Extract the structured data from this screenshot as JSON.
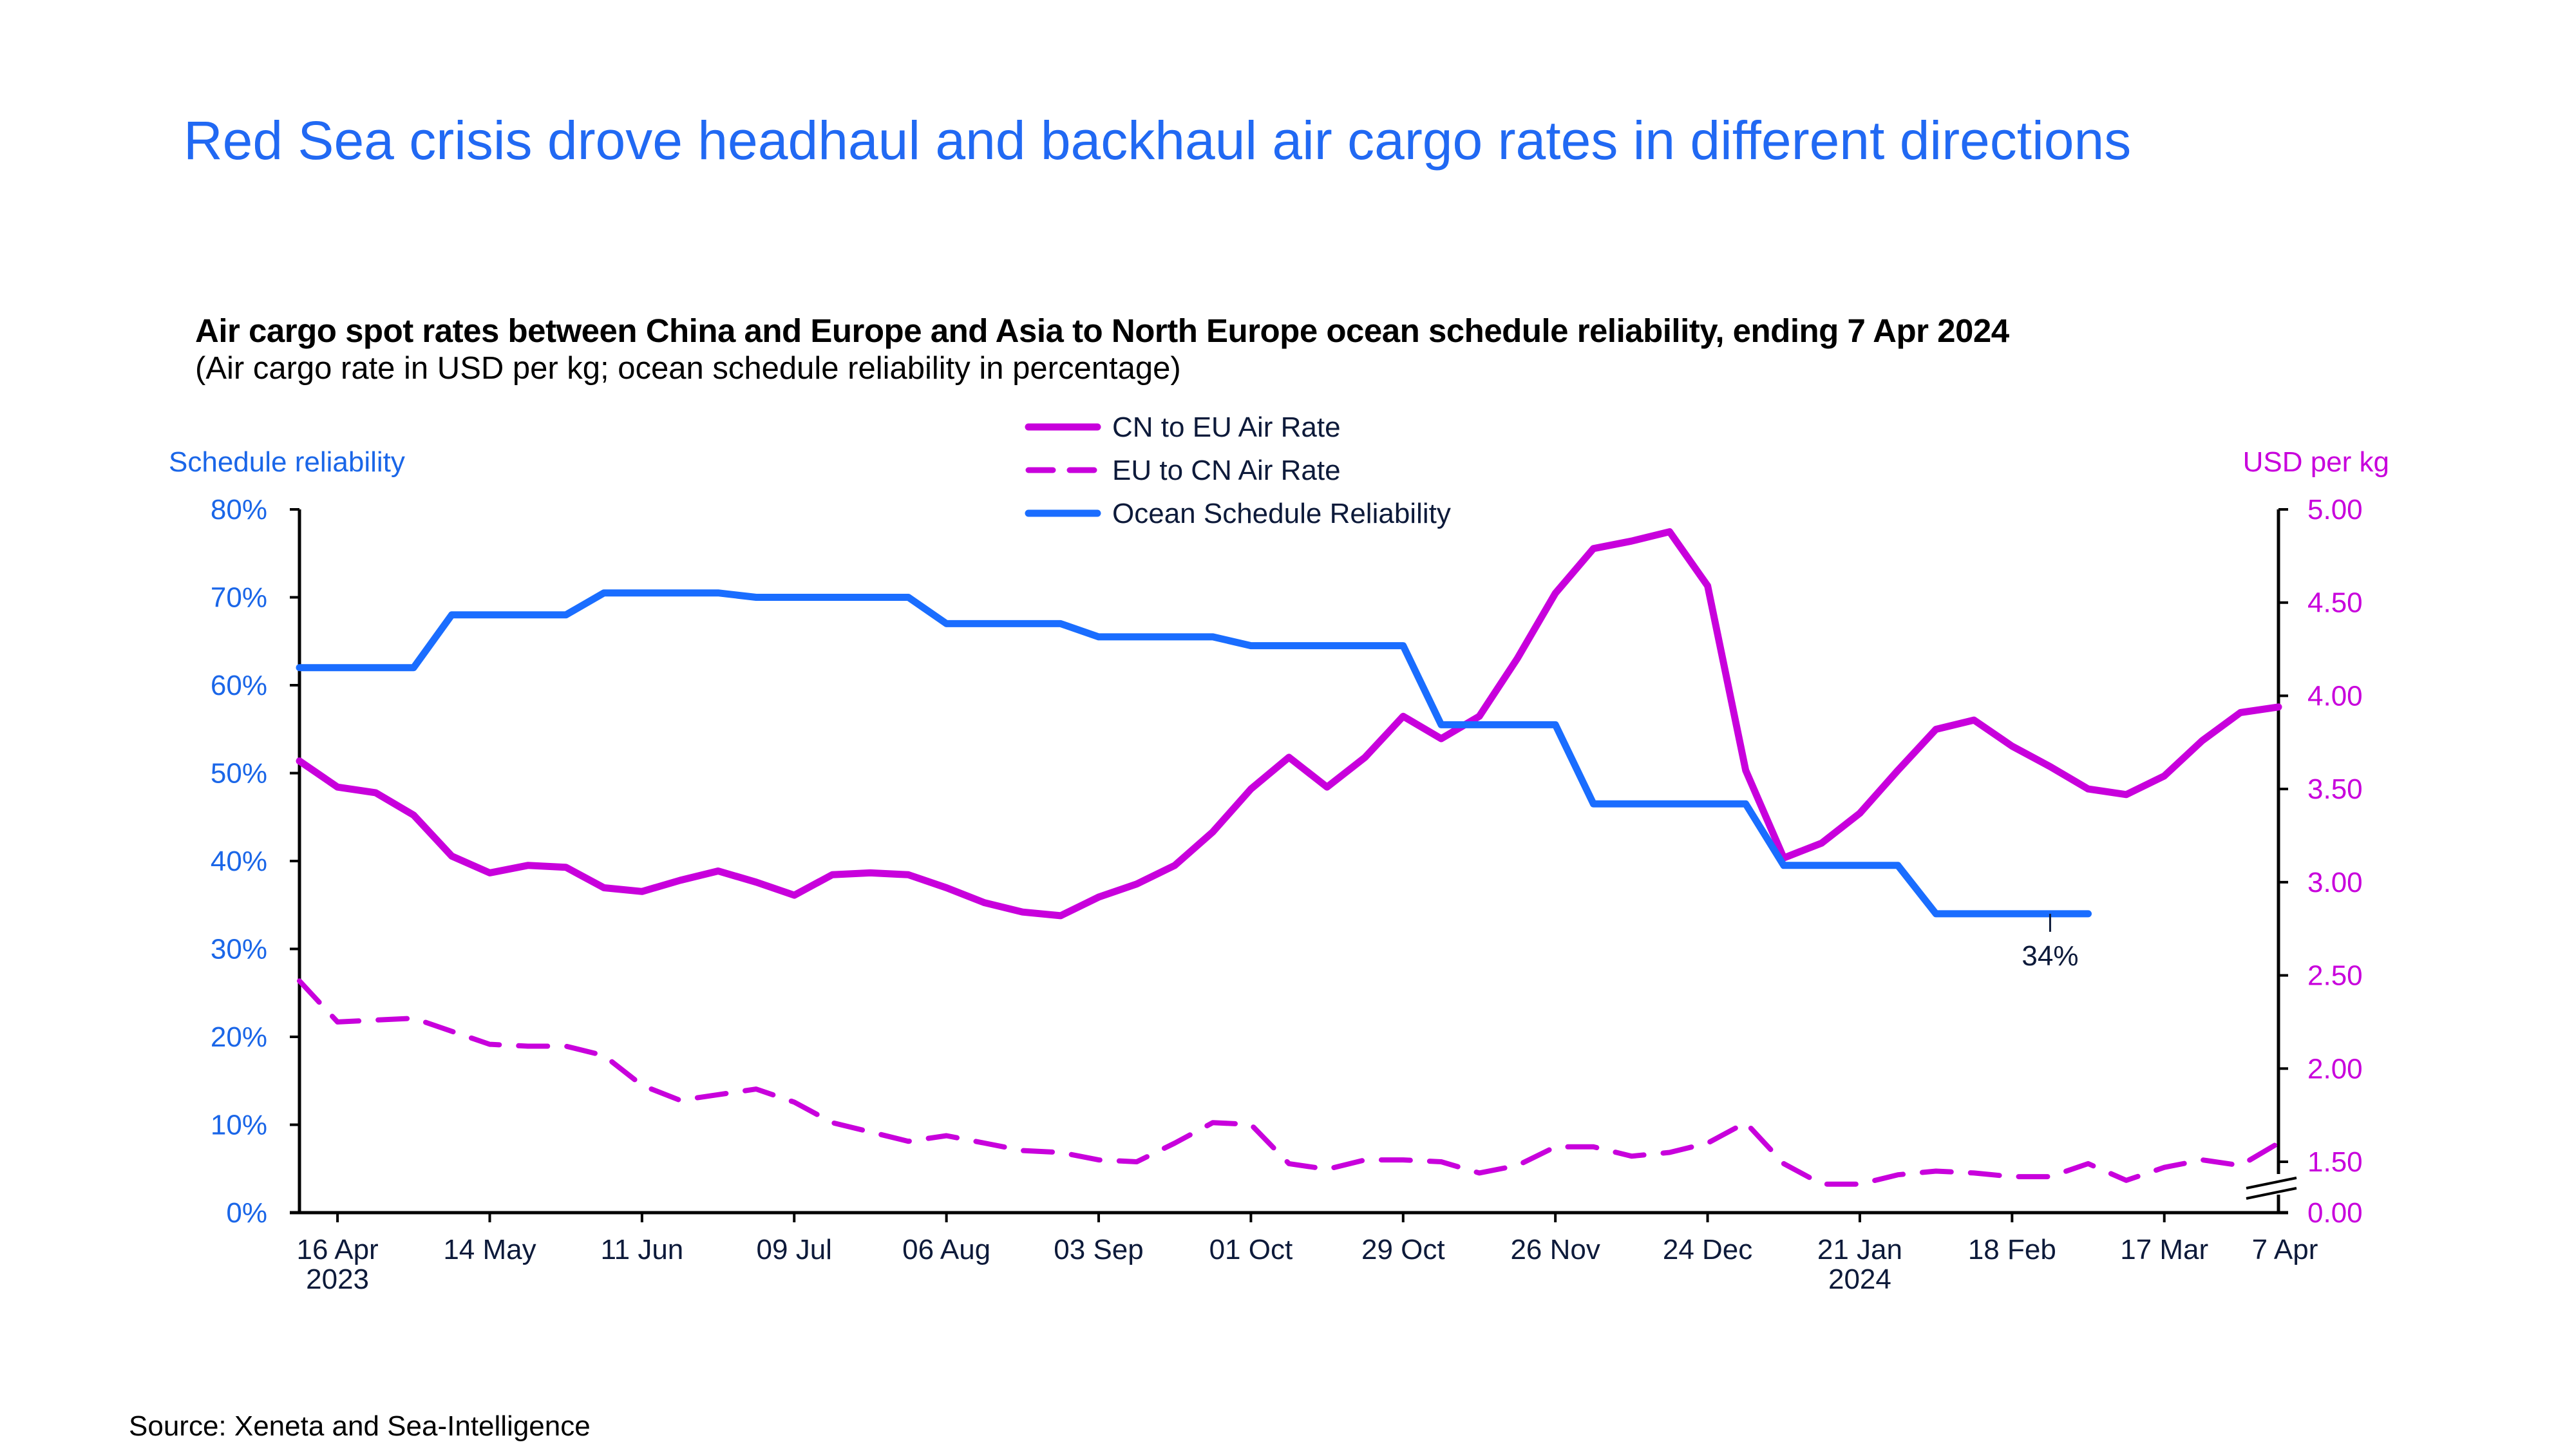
{
  "title": "Red Sea crisis drove headhaul and backhaul air cargo rates in different directions",
  "subtitle": "Air cargo spot rates between China and Europe and Asia to North Europe ocean schedule reliability, ending 7 Apr 2024",
  "subnote": "(Air cargo rate in USD per kg; ocean schedule reliability in percentage)",
  "source": "Source: Xeneta and Sea-Intelligence",
  "chart_data": {
    "type": "line",
    "title": "Air cargo spot rates between China and Europe and Asia to North Europe ocean schedule reliability, ending 7 Apr 2024",
    "x_frequency": "weekly",
    "x": [
      "2023-04-09",
      "2023-04-16",
      "2023-04-23",
      "2023-04-30",
      "2023-05-07",
      "2023-05-14",
      "2023-05-21",
      "2023-05-28",
      "2023-06-04",
      "2023-06-11",
      "2023-06-18",
      "2023-06-25",
      "2023-07-02",
      "2023-07-09",
      "2023-07-16",
      "2023-07-23",
      "2023-07-30",
      "2023-08-06",
      "2023-08-13",
      "2023-08-20",
      "2023-08-27",
      "2023-09-03",
      "2023-09-10",
      "2023-09-17",
      "2023-09-24",
      "2023-10-01",
      "2023-10-08",
      "2023-10-15",
      "2023-10-22",
      "2023-10-29",
      "2023-11-05",
      "2023-11-12",
      "2023-11-19",
      "2023-11-26",
      "2023-12-03",
      "2023-12-10",
      "2023-12-17",
      "2023-12-24",
      "2023-12-31",
      "2024-01-07",
      "2024-01-14",
      "2024-01-21",
      "2024-01-28",
      "2024-02-04",
      "2024-02-11",
      "2024-02-18",
      "2024-02-25",
      "2024-03-03",
      "2024-03-10",
      "2024-03-17",
      "2024-03-24",
      "2024-03-31",
      "2024-04-07"
    ],
    "x_ticks": [
      {
        "date": "2023-04-16",
        "label": "16 Apr",
        "sublabel": "2023"
      },
      {
        "date": "2023-05-14",
        "label": "14 May"
      },
      {
        "date": "2023-06-11",
        "label": "11 Jun"
      },
      {
        "date": "2023-07-09",
        "label": "09 Jul"
      },
      {
        "date": "2023-08-06",
        "label": "06 Aug"
      },
      {
        "date": "2023-09-03",
        "label": "03 Sep"
      },
      {
        "date": "2023-10-01",
        "label": "01 Oct"
      },
      {
        "date": "2023-10-29",
        "label": "29 Oct"
      },
      {
        "date": "2023-11-26",
        "label": "26 Nov"
      },
      {
        "date": "2023-12-24",
        "label": "24 Dec"
      },
      {
        "date": "2024-01-21",
        "label": "21 Jan",
        "sublabel": "2024"
      },
      {
        "date": "2024-02-18",
        "label": "18 Feb"
      },
      {
        "date": "2024-03-17",
        "label": "17 Mar"
      },
      {
        "date": "2024-04-07",
        "label": "7 Apr"
      }
    ],
    "y_left": {
      "label": "Schedule reliability",
      "ticks": [
        "0%",
        "10%",
        "20%",
        "30%",
        "40%",
        "50%",
        "60%",
        "70%",
        "80%"
      ],
      "range": [
        0,
        80
      ],
      "unit": "%"
    },
    "y_right": {
      "label": "USD per kg",
      "ticks": [
        "0.00",
        "1.50",
        "2.00",
        "2.50",
        "3.00",
        "3.50",
        "4.00",
        "4.50",
        "5.00"
      ],
      "range": [
        0,
        5
      ],
      "axis_break": "between 0.00 and 1.50"
    },
    "grid": false,
    "legend_position": "top-center",
    "series": [
      {
        "name": "CN to EU Air Rate",
        "axis": "right",
        "style": "solid",
        "color": "#c800dc",
        "values": [
          3.65,
          3.51,
          3.48,
          3.36,
          3.14,
          3.05,
          3.09,
          3.08,
          2.97,
          2.95,
          3.01,
          3.06,
          3.0,
          2.93,
          3.04,
          3.05,
          3.04,
          2.97,
          2.89,
          2.84,
          2.82,
          2.92,
          2.99,
          3.09,
          3.27,
          3.5,
          3.67,
          3.51,
          3.67,
          3.89,
          3.77,
          3.89,
          4.2,
          4.55,
          4.79,
          4.83,
          4.88,
          4.59,
          3.6,
          3.13,
          3.21,
          3.37,
          3.6,
          3.82,
          3.87,
          3.73,
          3.62,
          3.5,
          3.47,
          3.57,
          3.76,
          3.91,
          3.94
        ]
      },
      {
        "name": "EU to CN Air Rate",
        "axis": "right",
        "style": "dashed",
        "color": "#c800dc",
        "values": [
          2.47,
          2.25,
          2.26,
          2.27,
          2.2,
          2.13,
          2.12,
          2.12,
          2.07,
          1.91,
          1.83,
          1.86,
          1.89,
          1.82,
          1.71,
          1.66,
          1.61,
          1.64,
          1.6,
          1.56,
          1.55,
          1.51,
          1.5,
          1.6,
          1.71,
          1.7,
          1.49,
          1.46,
          1.51,
          1.51,
          1.5,
          1.44,
          1.48,
          1.58,
          1.58,
          1.53,
          1.55,
          1.6,
          1.71,
          1.49,
          1.38,
          1.38,
          1.43,
          1.45,
          1.44,
          1.42,
          1.42,
          1.49,
          1.4,
          1.47,
          1.51,
          1.48,
          1.6
        ]
      },
      {
        "name": "Ocean Schedule Reliability",
        "axis": "left",
        "style": "solid",
        "color": "#1a6dff",
        "values": [
          62,
          62,
          62,
          62,
          68,
          68,
          68,
          68,
          70.5,
          70.5,
          70.5,
          70.5,
          70,
          70,
          70,
          70,
          70,
          67,
          67,
          67,
          67,
          65.5,
          65.5,
          65.5,
          65.5,
          64.5,
          64.5,
          64.5,
          64.5,
          64.5,
          55.5,
          55.5,
          55.5,
          55.5,
          46.5,
          46.5,
          46.5,
          46.5,
          46.5,
          39.5,
          39.5,
          39.5,
          39.5,
          34,
          34,
          34,
          34,
          34,
          null,
          null,
          null,
          null,
          null
        ]
      }
    ],
    "annotations": [
      {
        "series": "Ocean Schedule Reliability",
        "date": "2024-02-25",
        "text": "34%"
      }
    ]
  },
  "colors": {
    "title": "#2169f3",
    "left_axis": "#1a66e8",
    "right_axis": "#c800dc",
    "air": "#c800dc",
    "ocean": "#1a6dff",
    "text": "#0d1a3a"
  }
}
